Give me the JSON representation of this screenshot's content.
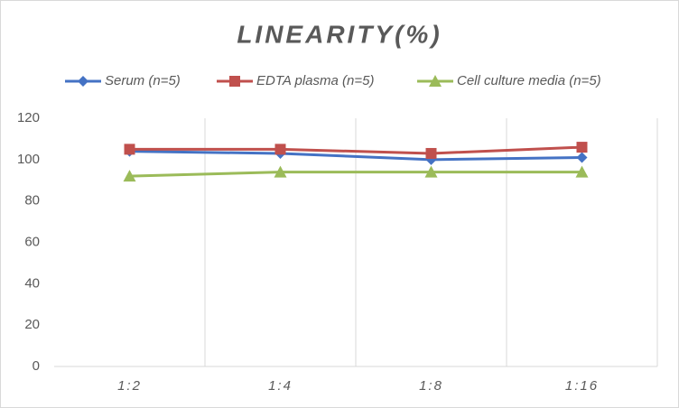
{
  "chart_data": {
    "type": "line",
    "title": "LINEARITY(%)",
    "categories": [
      "1:2",
      "1:4",
      "1:8",
      "1:16"
    ],
    "series": [
      {
        "name": "Serum (n=5)",
        "color": "#4472c4",
        "marker": "diamond",
        "values": [
          104,
          103,
          100,
          101
        ]
      },
      {
        "name": "EDTA plasma (n=5)",
        "color": "#c0504d",
        "marker": "square",
        "values": [
          105,
          105,
          103,
          106
        ]
      },
      {
        "name": "Cell culture media (n=5)",
        "color": "#9bbb59",
        "marker": "triangle",
        "values": [
          92,
          94,
          94,
          94
        ]
      }
    ],
    "ylim": [
      0,
      120
    ],
    "yticks": [
      0,
      20,
      40,
      60,
      80,
      100,
      120
    ],
    "grid": true,
    "legend": "top"
  }
}
